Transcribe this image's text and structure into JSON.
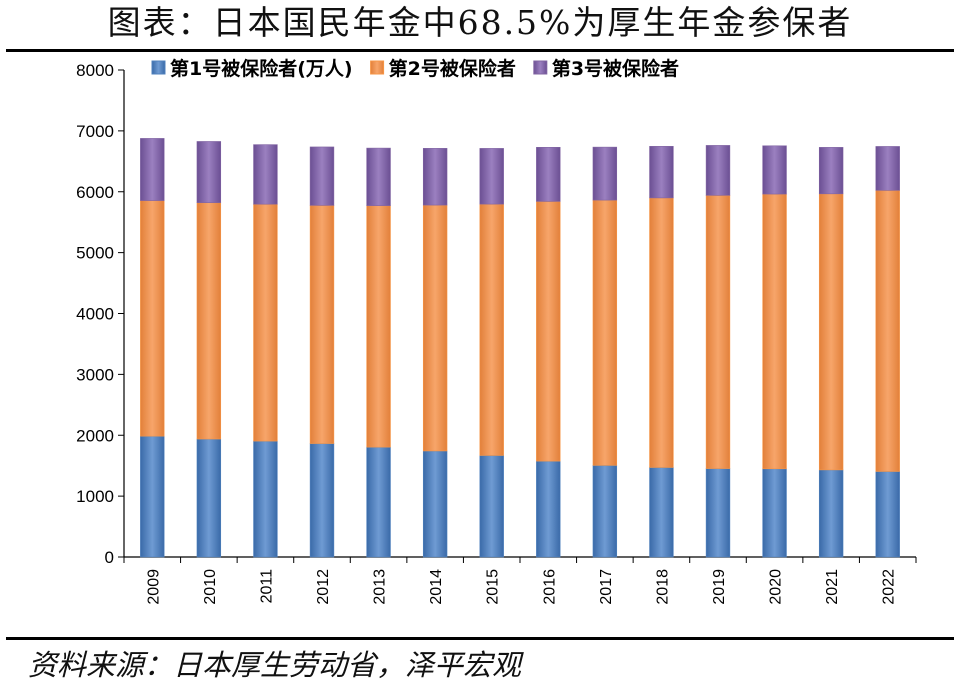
{
  "title": "图表：日本国民年金中68.5%为厚生年金参保者",
  "source": "资料来源：日本厚生劳动省，泽平宏观",
  "chart_data": {
    "type": "bar",
    "stacked": true,
    "categories": [
      "2009",
      "2010",
      "2011",
      "2012",
      "2013",
      "2014",
      "2015",
      "2016",
      "2017",
      "2018",
      "2019",
      "2020",
      "2021",
      "2022"
    ],
    "series": [
      {
        "name": "第1号被保险者(万人)",
        "color": "#4f81bd",
        "values": [
          1985,
          1938,
          1904,
          1864,
          1805,
          1742,
          1668,
          1575,
          1505,
          1471,
          1453,
          1449,
          1431,
          1405
        ]
      },
      {
        "name": "第2号被保险者",
        "color": "#f79646",
        "values": [
          3870,
          3883,
          3892,
          3912,
          3967,
          4039,
          4129,
          4266,
          4358,
          4428,
          4488,
          4513,
          4535,
          4618
        ]
      },
      {
        "name": "第3号被保险者",
        "color": "#8064a2",
        "values": [
          1021,
          1005,
          978,
          960,
          945,
          932,
          915,
          889,
          870,
          847,
          820,
          793,
          763,
          721
        ]
      }
    ],
    "ylim": [
      0,
      8000
    ],
    "yticks": [
      0,
      1000,
      2000,
      3000,
      4000,
      5000,
      6000,
      7000,
      8000
    ],
    "legend_position": "top",
    "grid": false
  }
}
